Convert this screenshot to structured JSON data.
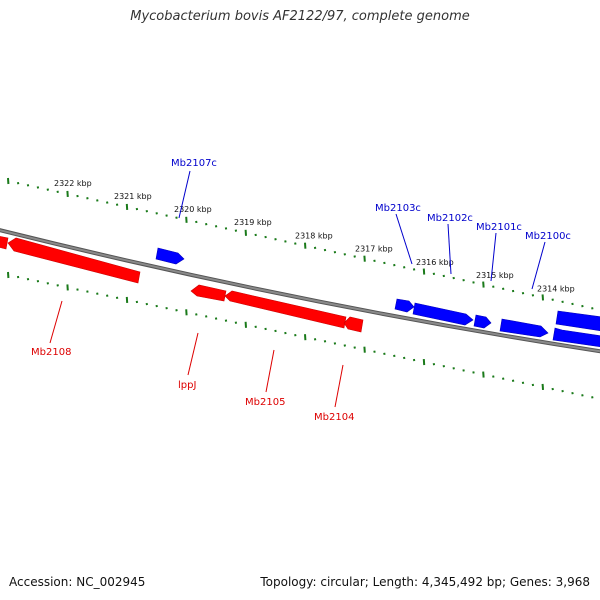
{
  "title": "Mycobacterium bovis AF2122/97, complete genome",
  "accession": "Accession: NC_002945",
  "summary": "Topology: circular; Length: 4,345,492 bp; Genes: 3,968",
  "colors": {
    "forward": "#0000ff",
    "reverse": "#ff0000",
    "backbone": "#808080",
    "ticks": "#1a7a1a"
  },
  "kbp_labels": [
    "2322 kbp",
    "2321 kbp",
    "2320 kbp",
    "2319 kbp",
    "2318 kbp",
    "2317 kbp",
    "2316 kbp",
    "2315 kbp",
    "2314 kbp"
  ],
  "forward_genes": [
    "Mb2107c",
    "Mb2103c",
    "Mb2102c",
    "Mb2101c",
    "Mb2100c"
  ],
  "reverse_genes": [
    "Mb2108",
    "lppJ",
    "Mb2105",
    "Mb2104"
  ]
}
